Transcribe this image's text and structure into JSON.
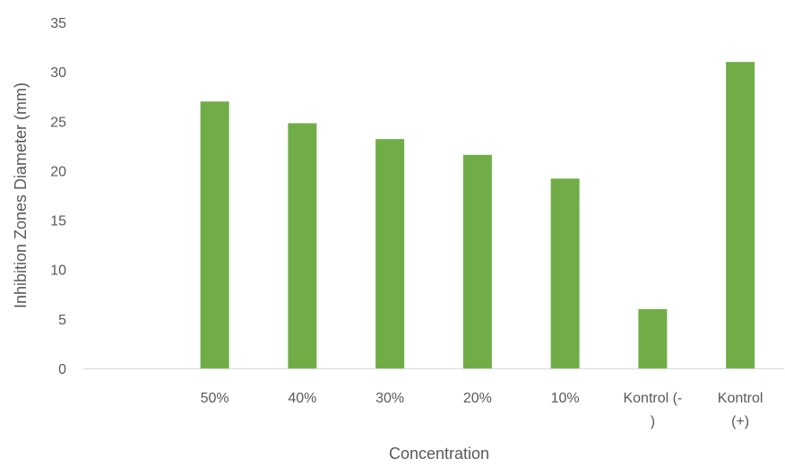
{
  "chart_data": {
    "type": "bar",
    "categories": [
      "",
      "50%",
      "40%",
      "30%",
      "20%",
      "10%",
      "Kontrol (-\n)",
      "Kontrol\n(+)"
    ],
    "values": [
      null,
      27,
      24.8,
      23.2,
      21.6,
      19.2,
      6,
      31
    ],
    "xlabel": "Concentration",
    "ylabel": "Inhibition Zones Diameter (mm)",
    "ylim": [
      0,
      35
    ],
    "yticks": [
      0,
      5,
      10,
      15,
      20,
      25,
      30,
      35
    ],
    "grid": false,
    "legend": "none",
    "bar_color": "#70ad47",
    "axis_color": "#d9d9d9"
  }
}
